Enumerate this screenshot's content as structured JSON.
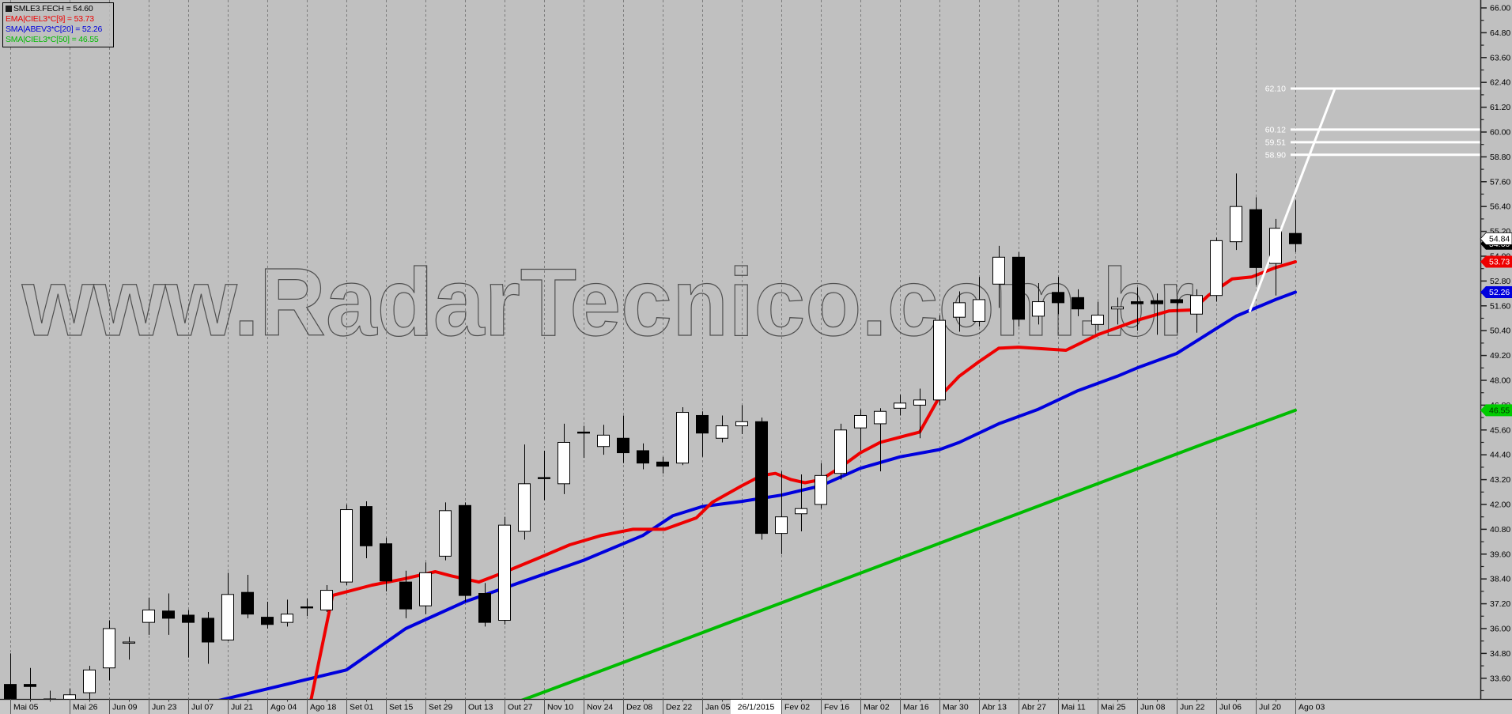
{
  "watermark": "www.RadarTecnico.com.br",
  "legend": {
    "rows": [
      {
        "text": "SMLE3.FECH = 54.60",
        "color": "#000000",
        "swatch": true
      },
      {
        "text": "EMA|CIEL3*C[9] = 53.73",
        "color": "#ee0000",
        "swatch": false
      },
      {
        "text": "SMA|ABEV3*C[20] = 52.26",
        "color": "#0000dd",
        "swatch": false
      },
      {
        "text": "SMA|CIEL3*C[50] = 46.55",
        "color": "#00bb00",
        "swatch": false
      }
    ]
  },
  "chart_data": {
    "type": "candlestick",
    "symbol": "SMLE3",
    "period": "weekly",
    "y_axis": {
      "min": 33.6,
      "max": 66.0,
      "step": 1.2,
      "minor_step": 0.6,
      "label_format": "0.00"
    },
    "x_ticks": [
      {
        "label": "Mai 05",
        "i": 0
      },
      {
        "label": "Mai 26",
        "i": 3
      },
      {
        "label": "Jun 09",
        "i": 5
      },
      {
        "label": "Jun 23",
        "i": 7
      },
      {
        "label": "Jul 07",
        "i": 9
      },
      {
        "label": "Jul 21",
        "i": 11
      },
      {
        "label": "Ago 04",
        "i": 13
      },
      {
        "label": "Ago 18",
        "i": 15
      },
      {
        "label": "Set 01",
        "i": 17
      },
      {
        "label": "Set 15",
        "i": 19
      },
      {
        "label": "Set 29",
        "i": 21
      },
      {
        "label": "Out 13",
        "i": 23
      },
      {
        "label": "Out 27",
        "i": 25
      },
      {
        "label": "Nov 10",
        "i": 27
      },
      {
        "label": "Nov 24",
        "i": 29
      },
      {
        "label": "Dez 08",
        "i": 31
      },
      {
        "label": "Dez 22",
        "i": 33
      },
      {
        "label": "Jan 05",
        "i": 35
      },
      {
        "label": "26/1/2015",
        "i": 37,
        "selected": true
      },
      {
        "label": "Fev 02",
        "i": 39
      },
      {
        "label": "Fev 16",
        "i": 41
      },
      {
        "label": "Mar 02",
        "i": 43
      },
      {
        "label": "Mar 16",
        "i": 45
      },
      {
        "label": "Mar 30",
        "i": 47
      },
      {
        "label": "Abr 13",
        "i": 49
      },
      {
        "label": "Abr 27",
        "i": 51
      },
      {
        "label": "Mai 11",
        "i": 53
      },
      {
        "label": "Mai 25",
        "i": 55
      },
      {
        "label": "Jun 08",
        "i": 57
      },
      {
        "label": "Jun 22",
        "i": 59
      },
      {
        "label": "Jul 06",
        "i": 61
      },
      {
        "label": "Jul 20",
        "i": 63
      },
      {
        "label": "Ago 03",
        "i": 65
      }
    ],
    "candles": [
      [
        33.3,
        34.8,
        32.1,
        32.3
      ],
      [
        33.3,
        34.1,
        32.4,
        33.2
      ],
      [
        32.6,
        33.0,
        32.2,
        32.5
      ],
      [
        32.5,
        33.1,
        32.2,
        32.8
      ],
      [
        32.9,
        34.2,
        32.4,
        34.0
      ],
      [
        34.1,
        36.4,
        33.5,
        36.0
      ],
      [
        35.3,
        35.6,
        34.5,
        35.35
      ],
      [
        36.3,
        37.5,
        35.7,
        36.9
      ],
      [
        36.85,
        37.7,
        35.7,
        36.5
      ],
      [
        36.65,
        36.9,
        34.6,
        36.3
      ],
      [
        36.5,
        36.8,
        34.3,
        35.35
      ],
      [
        35.45,
        38.7,
        35.4,
        37.65
      ],
      [
        37.75,
        38.6,
        36.5,
        36.7
      ],
      [
        36.55,
        37.3,
        36.0,
        36.2
      ],
      [
        36.3,
        37.4,
        36.1,
        36.7
      ],
      [
        37.05,
        37.45,
        36.6,
        37.0
      ],
      [
        36.9,
        38.1,
        36.8,
        37.85
      ],
      [
        38.25,
        42.0,
        38.1,
        41.75
      ],
      [
        41.9,
        42.15,
        39.4,
        40.0
      ],
      [
        40.1,
        40.4,
        37.8,
        38.3
      ],
      [
        38.25,
        38.8,
        36.5,
        36.95
      ],
      [
        37.1,
        39.2,
        36.7,
        38.7
      ],
      [
        39.5,
        42.1,
        39.3,
        41.7
      ],
      [
        41.95,
        42.1,
        37.3,
        37.6
      ],
      [
        37.7,
        38.2,
        36.1,
        36.3
      ],
      [
        36.4,
        41.4,
        36.2,
        41.0
      ],
      [
        40.7,
        44.9,
        40.3,
        43.0
      ],
      [
        43.3,
        44.6,
        42.2,
        43.25
      ],
      [
        43.0,
        45.9,
        42.5,
        45.0
      ],
      [
        45.5,
        45.8,
        44.25,
        45.45
      ],
      [
        44.8,
        45.85,
        44.4,
        45.35
      ],
      [
        45.2,
        46.3,
        44.0,
        44.5
      ],
      [
        44.6,
        44.95,
        43.7,
        44.0
      ],
      [
        44.05,
        44.3,
        43.5,
        43.85
      ],
      [
        44.0,
        46.7,
        43.9,
        46.45
      ],
      [
        46.3,
        46.5,
        44.3,
        45.45
      ],
      [
        45.2,
        46.3,
        45.0,
        45.8
      ],
      [
        45.8,
        46.8,
        45.4,
        46.0
      ],
      [
        46.0,
        46.2,
        40.3,
        40.6
      ],
      [
        40.6,
        43.6,
        39.6,
        41.4
      ],
      [
        41.55,
        43.45,
        40.7,
        41.8
      ],
      [
        42.0,
        44.0,
        41.8,
        43.4
      ],
      [
        43.5,
        45.9,
        43.2,
        45.6
      ],
      [
        45.7,
        46.6,
        44.6,
        46.3
      ],
      [
        45.9,
        46.65,
        43.6,
        46.5
      ],
      [
        46.65,
        47.3,
        46.3,
        46.9
      ],
      [
        46.8,
        47.6,
        45.2,
        47.05
      ],
      [
        47.05,
        51.15,
        46.8,
        50.9
      ],
      [
        51.05,
        52.3,
        50.35,
        51.75
      ],
      [
        50.85,
        53.0,
        50.6,
        51.9
      ],
      [
        52.65,
        54.5,
        51.5,
        53.95
      ],
      [
        53.95,
        54.2,
        50.6,
        50.95
      ],
      [
        51.1,
        52.7,
        50.7,
        51.8
      ],
      [
        52.25,
        53.0,
        51.2,
        51.75
      ],
      [
        52.0,
        52.4,
        51.1,
        51.45
      ],
      [
        50.7,
        51.8,
        50.4,
        51.15
      ],
      [
        51.45,
        52.0,
        50.7,
        51.55
      ],
      [
        51.8,
        52.5,
        50.4,
        51.7
      ],
      [
        51.85,
        52.2,
        50.2,
        51.7
      ],
      [
        51.9,
        52.1,
        50.3,
        51.75
      ],
      [
        51.2,
        52.4,
        50.3,
        52.1
      ],
      [
        52.1,
        54.9,
        51.8,
        54.75
      ],
      [
        54.7,
        58.0,
        54.3,
        56.4
      ],
      [
        56.25,
        56.85,
        52.6,
        53.45
      ],
      [
        53.65,
        55.8,
        52.1,
        55.35
      ],
      [
        55.1,
        56.7,
        54.2,
        54.6
      ]
    ],
    "candle_colors": {
      "up_fill": "#ffffff",
      "down_fill": "#000000",
      "outline": "#000000"
    },
    "overlays": [
      {
        "name": "EMA|CIEL3*C[9]",
        "color": "#ee0000",
        "width": 4,
        "points": [
          [
            15.2,
            32.5
          ],
          [
            16.3,
            37.6
          ],
          [
            18.3,
            38.1
          ],
          [
            19.9,
            38.4
          ],
          [
            21.5,
            38.75
          ],
          [
            22.3,
            38.55
          ],
          [
            23.7,
            38.25
          ],
          [
            24.8,
            38.65
          ],
          [
            26.7,
            39.4
          ],
          [
            28.3,
            40.05
          ],
          [
            29.9,
            40.5
          ],
          [
            31.5,
            40.8
          ],
          [
            33.1,
            40.8
          ],
          [
            34.7,
            41.35
          ],
          [
            35.5,
            42.1
          ],
          [
            37,
            42.9
          ],
          [
            38,
            43.4
          ],
          [
            38.7,
            43.5
          ],
          [
            39.5,
            43.2
          ],
          [
            40.2,
            43.05
          ],
          [
            41,
            43.2
          ],
          [
            42,
            43.8
          ],
          [
            43,
            44.5
          ],
          [
            44,
            45.0
          ],
          [
            45,
            45.25
          ],
          [
            46,
            45.5
          ],
          [
            47,
            47.2
          ],
          [
            48,
            48.2
          ],
          [
            49,
            48.9
          ],
          [
            50,
            49.55
          ],
          [
            51,
            49.6
          ],
          [
            53.4,
            49.45
          ],
          [
            55,
            50.2
          ],
          [
            57,
            50.9
          ],
          [
            58.6,
            51.35
          ],
          [
            59.8,
            51.4
          ],
          [
            60.6,
            52.1
          ],
          [
            61.8,
            52.9
          ],
          [
            62.8,
            53.0
          ],
          [
            64,
            53.45
          ],
          [
            65,
            53.73
          ]
        ]
      },
      {
        "name": "SMA|ABEV3*C[20]",
        "color": "#0000dd",
        "width": 4,
        "points": [
          [
            10,
            32.4
          ],
          [
            17,
            34.0
          ],
          [
            20,
            36.0
          ],
          [
            23,
            37.3
          ],
          [
            26,
            38.3
          ],
          [
            29,
            39.3
          ],
          [
            32,
            40.5
          ],
          [
            33.5,
            41.45
          ],
          [
            35,
            41.9
          ],
          [
            37,
            42.15
          ],
          [
            39,
            42.45
          ],
          [
            41,
            42.9
          ],
          [
            43,
            43.75
          ],
          [
            45,
            44.3
          ],
          [
            47,
            44.65
          ],
          [
            48,
            45.0
          ],
          [
            50,
            45.9
          ],
          [
            52,
            46.6
          ],
          [
            54,
            47.5
          ],
          [
            56,
            48.2
          ],
          [
            57,
            48.6
          ],
          [
            59,
            49.3
          ],
          [
            60,
            49.9
          ],
          [
            61,
            50.5
          ],
          [
            62,
            51.1
          ],
          [
            63,
            51.5
          ],
          [
            64,
            51.9
          ],
          [
            65,
            52.26
          ]
        ]
      },
      {
        "name": "SMA|CIEL3*C[50]",
        "color": "#00bb00",
        "width": 4,
        "points": [
          [
            25.5,
            32.4
          ],
          [
            30,
            34.0
          ],
          [
            35,
            35.8
          ],
          [
            40,
            37.6
          ],
          [
            45,
            39.4
          ],
          [
            50,
            41.2
          ],
          [
            55,
            43.0
          ],
          [
            60,
            44.8
          ],
          [
            63,
            45.85
          ],
          [
            65,
            46.55
          ]
        ]
      }
    ],
    "target_lines": [
      {
        "label": "62.10",
        "price": 62.1
      },
      {
        "label": "60.12",
        "price": 60.12
      },
      {
        "label": "59.51",
        "price": 59.51
      },
      {
        "label": "58.90",
        "price": 58.9
      }
    ],
    "trendline": {
      "from": [
        62.7,
        51.35
      ],
      "to": [
        67.0,
        62.1
      ]
    },
    "price_tags": [
      {
        "label": "54.60",
        "price": 54.6,
        "bg": "#000000",
        "fg": "#ffffff"
      },
      {
        "label": "54.84",
        "price": 54.84,
        "bg": "#ffffff",
        "fg": "#000000"
      },
      {
        "label": "53.73",
        "price": 53.73,
        "bg": "#ee0000",
        "fg": "#ffffff"
      },
      {
        "label": "52.26",
        "price": 52.26,
        "bg": "#0000dd",
        "fg": "#ffffff"
      },
      {
        "label": "46.55",
        "price": 46.55,
        "bg": "#00cc00",
        "fg": "#003300"
      }
    ]
  }
}
